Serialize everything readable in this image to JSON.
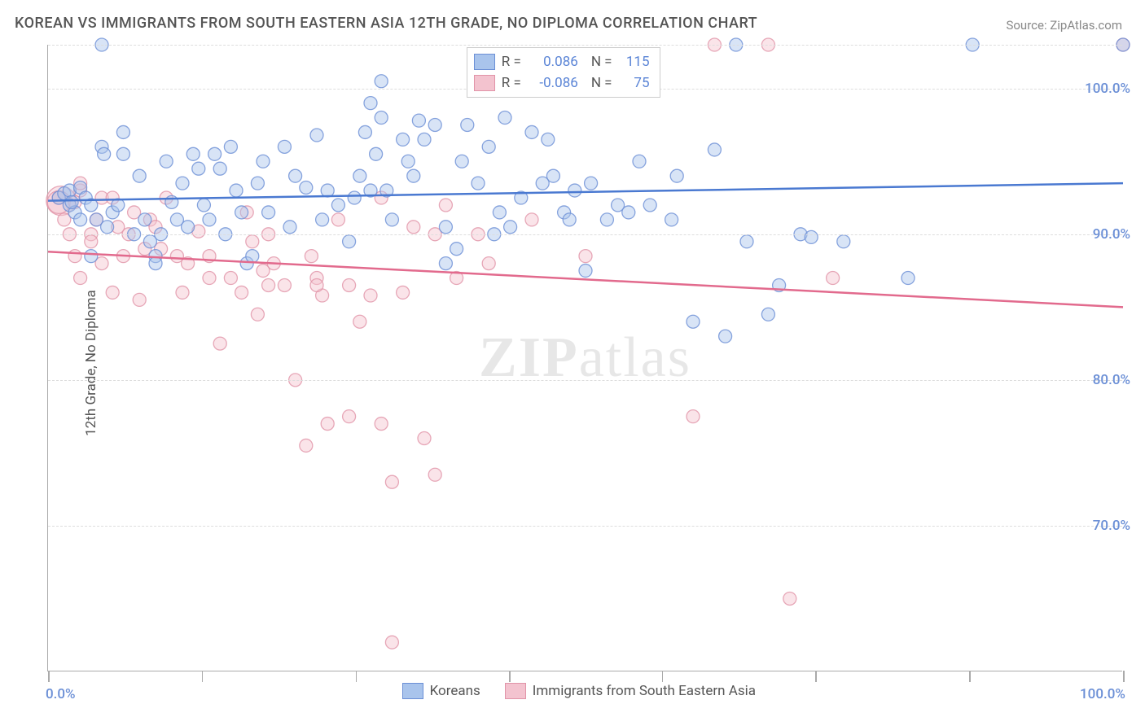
{
  "title": "KOREAN VS IMMIGRANTS FROM SOUTH EASTERN ASIA 12TH GRADE, NO DIPLOMA CORRELATION CHART",
  "source_label": "Source: ZipAtlas.com",
  "y_axis_label": "12th Grade, No Diploma",
  "watermark": "ZIPatlas",
  "colors": {
    "series_blue_fill": "#a9c4ec",
    "series_blue_stroke": "#6b8fd6",
    "series_pink_fill": "#f3c3cf",
    "series_pink_stroke": "#e193a8",
    "line_blue": "#4a79d1",
    "line_pink": "#e26a8d",
    "grid": "#dddddd",
    "axis": "#aaaaaa",
    "tick_text": "#6b8fd6"
  },
  "chart": {
    "type": "scatter",
    "xlim": [
      0,
      100
    ],
    "ylim": [
      60,
      103
    ],
    "x_ticks": [
      0,
      14.3,
      28.6,
      42.9,
      57.1,
      71.4,
      85.7,
      100
    ],
    "y_gridlines": [
      70,
      80,
      90,
      100,
      103
    ],
    "y_tick_labels": [
      {
        "v": 70,
        "label": "70.0%"
      },
      {
        "v": 80,
        "label": "80.0%"
      },
      {
        "v": 90,
        "label": "90.0%"
      },
      {
        "v": 100,
        "label": "100.0%"
      }
    ],
    "x_tick_labels": [
      {
        "v": 0,
        "label": "0.0%"
      },
      {
        "v": 100,
        "label": "100.0%"
      }
    ],
    "marker_radius": 8,
    "marker_opacity_fill": 0.45,
    "marker_opacity_stroke": 0.8,
    "trend_blue": {
      "y_at_x0": 92.3,
      "y_at_x100": 93.5
    },
    "trend_pink": {
      "y_at_x0": 88.8,
      "y_at_x100": 85.0
    }
  },
  "legend_top": {
    "rows": [
      {
        "swatch": "blue",
        "r_label": "R =",
        "r_value": "0.086",
        "n_label": "N =",
        "n_value": "115"
      },
      {
        "swatch": "pink",
        "r_label": "R =",
        "r_value": "-0.086",
        "n_label": "N =",
        "n_value": "75"
      }
    ]
  },
  "legend_bottom": {
    "items": [
      {
        "swatch": "blue",
        "label": "Koreans"
      },
      {
        "swatch": "pink",
        "label": "Immigrants from South Eastern Asia"
      }
    ]
  },
  "series_blue": [
    [
      1,
      92.5
    ],
    [
      1.5,
      92.8
    ],
    [
      2,
      93
    ],
    [
      2,
      92
    ],
    [
      2.5,
      91.5
    ],
    [
      2.2,
      92.2
    ],
    [
      3,
      93.2
    ],
    [
      3,
      91
    ],
    [
      3.5,
      92.5
    ],
    [
      4,
      92
    ],
    [
      4,
      88.5
    ],
    [
      4.5,
      91
    ],
    [
      5,
      96
    ],
    [
      5,
      103
    ],
    [
      5.2,
      95.5
    ],
    [
      5.5,
      90.5
    ],
    [
      6,
      91.5
    ],
    [
      6.5,
      92
    ],
    [
      7,
      97
    ],
    [
      7,
      95.5
    ],
    [
      8,
      90
    ],
    [
      8.5,
      94
    ],
    [
      9,
      91
    ],
    [
      9.5,
      89.5
    ],
    [
      10,
      88.5
    ],
    [
      10,
      88
    ],
    [
      10.5,
      90
    ],
    [
      11,
      95
    ],
    [
      11.5,
      92.2
    ],
    [
      12,
      91
    ],
    [
      12.5,
      93.5
    ],
    [
      13,
      90.5
    ],
    [
      13.5,
      95.5
    ],
    [
      14,
      94.5
    ],
    [
      14.5,
      92
    ],
    [
      15,
      91
    ],
    [
      15.5,
      95.5
    ],
    [
      16,
      94.5
    ],
    [
      16.5,
      90
    ],
    [
      17,
      96
    ],
    [
      17.5,
      93
    ],
    [
      18,
      91.5
    ],
    [
      18.5,
      88
    ],
    [
      19,
      88.5
    ],
    [
      19.5,
      93.5
    ],
    [
      20,
      95
    ],
    [
      20.5,
      91.5
    ],
    [
      22,
      96
    ],
    [
      22.5,
      90.5
    ],
    [
      23,
      94
    ],
    [
      24,
      93.2
    ],
    [
      25,
      96.8
    ],
    [
      25.5,
      91
    ],
    [
      26,
      93
    ],
    [
      27,
      92
    ],
    [
      28,
      89.5
    ],
    [
      28.5,
      92.5
    ],
    [
      29,
      94
    ],
    [
      29.5,
      97
    ],
    [
      30,
      93
    ],
    [
      30,
      99
    ],
    [
      30.5,
      95.5
    ],
    [
      31,
      98
    ],
    [
      31,
      100.5
    ],
    [
      31.5,
      93
    ],
    [
      32,
      91
    ],
    [
      33,
      96.5
    ],
    [
      33.5,
      95
    ],
    [
      34,
      94
    ],
    [
      34.5,
      97.8
    ],
    [
      35,
      96.5
    ],
    [
      36,
      97.5
    ],
    [
      37,
      90.5
    ],
    [
      37,
      88
    ],
    [
      38,
      89
    ],
    [
      38.5,
      95
    ],
    [
      39,
      97.5
    ],
    [
      40,
      93.5
    ],
    [
      41,
      96
    ],
    [
      41.5,
      90
    ],
    [
      42,
      91.5
    ],
    [
      42.5,
      98
    ],
    [
      43,
      90.5
    ],
    [
      44,
      92.5
    ],
    [
      45,
      97
    ],
    [
      46,
      93.5
    ],
    [
      46.5,
      96.5
    ],
    [
      47,
      94
    ],
    [
      48,
      91.5
    ],
    [
      48.5,
      91
    ],
    [
      49,
      93
    ],
    [
      50,
      87.5
    ],
    [
      50.5,
      93.5
    ],
    [
      52,
      91
    ],
    [
      53,
      92
    ],
    [
      54,
      91.5
    ],
    [
      55,
      95
    ],
    [
      56,
      92
    ],
    [
      58,
      91
    ],
    [
      58.5,
      94
    ],
    [
      60,
      84
    ],
    [
      62,
      95.8
    ],
    [
      63,
      83
    ],
    [
      64,
      103
    ],
    [
      65,
      89.5
    ],
    [
      67,
      84.5
    ],
    [
      68,
      86.5
    ],
    [
      70,
      90
    ],
    [
      71,
      89.8
    ],
    [
      74,
      89.5
    ],
    [
      80,
      87
    ],
    [
      86,
      103
    ],
    [
      100,
      103
    ]
  ],
  "series_pink": [
    [
      1,
      92.5
    ],
    [
      1.5,
      91
    ],
    [
      2,
      90
    ],
    [
      2.5,
      92.2
    ],
    [
      2.5,
      88.5
    ],
    [
      3,
      93
    ],
    [
      3,
      87
    ],
    [
      3,
      93.5
    ],
    [
      4,
      90
    ],
    [
      4,
      89.5
    ],
    [
      4.5,
      91
    ],
    [
      5,
      88
    ],
    [
      5,
      92.5
    ],
    [
      6,
      92.5
    ],
    [
      6,
      86
    ],
    [
      6.5,
      90.5
    ],
    [
      7,
      88.5
    ],
    [
      7.5,
      90
    ],
    [
      8,
      91.5
    ],
    [
      8.5,
      85.5
    ],
    [
      9,
      89
    ],
    [
      9.5,
      91
    ],
    [
      10,
      90.5
    ],
    [
      10.5,
      89
    ],
    [
      11,
      92.5
    ],
    [
      12,
      88.5
    ],
    [
      12.5,
      86
    ],
    [
      13,
      88
    ],
    [
      14,
      90.2
    ],
    [
      15,
      87
    ],
    [
      15,
      88.5
    ],
    [
      16,
      82.5
    ],
    [
      17,
      87
    ],
    [
      18,
      86
    ],
    [
      18.5,
      91.5
    ],
    [
      19,
      89.5
    ],
    [
      19.5,
      84.5
    ],
    [
      20,
      87.5
    ],
    [
      20.5,
      90
    ],
    [
      20.5,
      86.5
    ],
    [
      21,
      88
    ],
    [
      22,
      86.5
    ],
    [
      23,
      80
    ],
    [
      24,
      75.5
    ],
    [
      24.5,
      88.5
    ],
    [
      25,
      87
    ],
    [
      25.5,
      85.8
    ],
    [
      25,
      86.5
    ],
    [
      26,
      77
    ],
    [
      27,
      91
    ],
    [
      28,
      77.5
    ],
    [
      28,
      86.5
    ],
    [
      29,
      84
    ],
    [
      30,
      85.8
    ],
    [
      31,
      92.5
    ],
    [
      31,
      77
    ],
    [
      32,
      73
    ],
    [
      32,
      62
    ],
    [
      33,
      86
    ],
    [
      34,
      90.5
    ],
    [
      35,
      76
    ],
    [
      36,
      73.5
    ],
    [
      36,
      90
    ],
    [
      37,
      92
    ],
    [
      38,
      87
    ],
    [
      40,
      90
    ],
    [
      41,
      88
    ],
    [
      45,
      91
    ],
    [
      50,
      88.5
    ],
    [
      60,
      77.5
    ],
    [
      62,
      103
    ],
    [
      67,
      103
    ],
    [
      69,
      65
    ],
    [
      73,
      87
    ],
    [
      100,
      103
    ]
  ]
}
